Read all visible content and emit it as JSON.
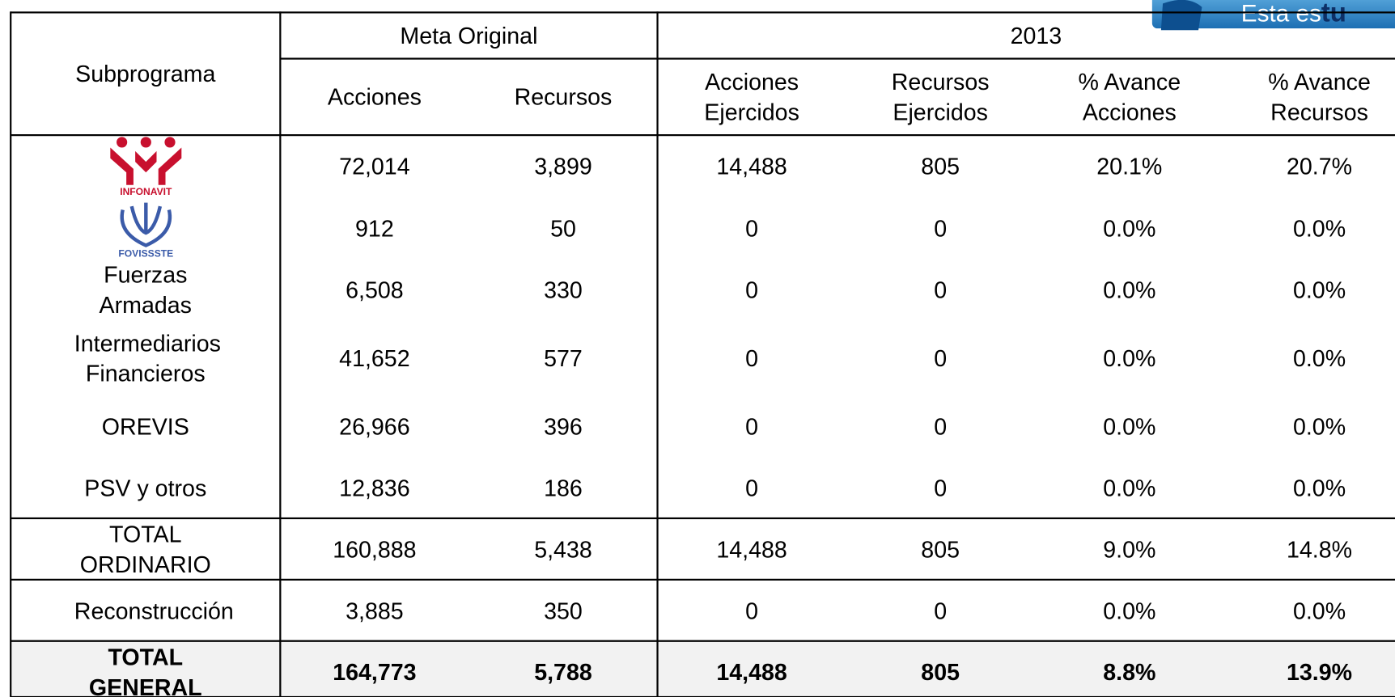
{
  "banner": {
    "text": "Esta es",
    "bold": "tu"
  },
  "table": {
    "header": {
      "subprograma": "Subprograma",
      "groups": [
        "Meta Original",
        "2013"
      ],
      "columns": [
        "Acciones",
        "Recursos",
        "Acciones Ejercidos",
        "Recursos Ejercidos",
        "% Avance Acciones",
        "% Avance Recursos"
      ]
    },
    "rows": [
      {
        "logo": "INFONAVIT",
        "cells": [
          "72,014",
          "3,899",
          "14,488",
          "805",
          "20.1%",
          "20.7%"
        ]
      },
      {
        "logo": "FOVISSSTE",
        "cells": [
          "912",
          "50",
          "0",
          "0",
          "0.0%",
          "0.0%"
        ]
      },
      {
        "label": "Fuerzas Armadas",
        "cells": [
          "6,508",
          "330",
          "0",
          "0",
          "0.0%",
          "0.0%"
        ]
      },
      {
        "label": "Intermediarios Financieros",
        "cells": [
          "41,652",
          "577",
          "0",
          "0",
          "0.0%",
          "0.0%"
        ]
      },
      {
        "label": "OREVIS",
        "cells": [
          "26,966",
          "396",
          "0",
          "0",
          "0.0%",
          "0.0%"
        ]
      },
      {
        "label": "PSV y otros",
        "cells": [
          "12,836",
          "186",
          "0",
          "0",
          "0.0%",
          "0.0%"
        ]
      },
      {
        "label": "TOTAL ORDINARIO",
        "cells": [
          "160,888",
          "5,438",
          "14,488",
          "805",
          "9.0%",
          "14.8%"
        ]
      },
      {
        "label": "Reconstrucción",
        "cells": [
          "3,885",
          "350",
          "0",
          "0",
          "0.0%",
          "0.0%"
        ]
      },
      {
        "label": "TOTAL GENERAL",
        "cells": [
          "164,773",
          "5,788",
          "14,488",
          "805",
          "8.8%",
          "13.9%"
        ]
      }
    ]
  }
}
